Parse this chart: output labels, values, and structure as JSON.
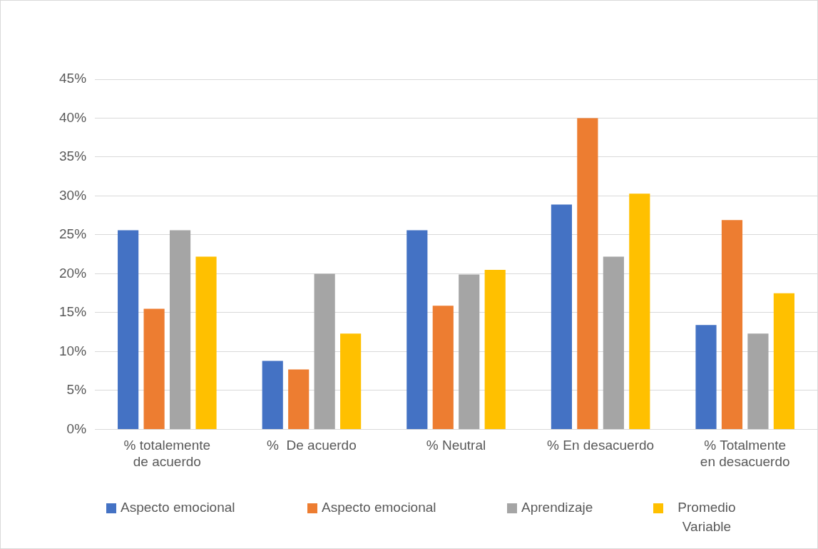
{
  "chart_data": {
    "type": "bar",
    "categories": [
      "% totalemente de acuerdo",
      "%  De acuerdo",
      "% Neutral",
      "% En desacuerdo",
      "% Totalmente en desacuerdo"
    ],
    "series": [
      {
        "name": "Aspecto emocional",
        "color": "#4472c4",
        "values": [
          25.6,
          8.8,
          25.6,
          28.9,
          13.4
        ]
      },
      {
        "name": "Aspecto emocional",
        "color": "#ed7d31",
        "values": [
          15.5,
          7.7,
          15.9,
          40,
          26.9
        ]
      },
      {
        "name": "Aprendizaje",
        "color": "#a5a5a5",
        "values": [
          25.6,
          20,
          19.9,
          22.2,
          12.3
        ]
      },
      {
        "name": "Promedio Variable",
        "color": "#ffc000",
        "values": [
          22.2,
          12.3,
          20.5,
          30.3,
          17.5
        ]
      }
    ],
    "ylim": [
      0,
      45
    ],
    "yticks": [
      {
        "value": 0,
        "label": "0%"
      },
      {
        "value": 5,
        "label": "5%"
      },
      {
        "value": 10,
        "label": "10%"
      },
      {
        "value": 15,
        "label": "15%"
      },
      {
        "value": 20,
        "label": "20%"
      },
      {
        "value": 25,
        "label": "25%"
      },
      {
        "value": 30,
        "label": "30%"
      },
      {
        "value": 35,
        "label": "35%"
      },
      {
        "value": 40,
        "label": "40%"
      },
      {
        "value": 45,
        "label": "45%"
      }
    ],
    "grid": "y",
    "legend": "bottom"
  }
}
